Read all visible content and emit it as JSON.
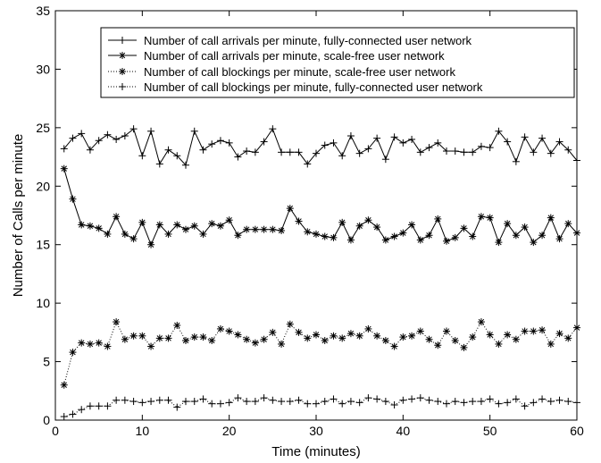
{
  "chart_data": {
    "type": "line",
    "title": "",
    "xlabel": "Time (minutes)",
    "ylabel": "Number of Calls per minute",
    "xlim": [
      0,
      60
    ],
    "ylim": [
      0,
      35
    ],
    "xticks": [
      0,
      10,
      20,
      30,
      40,
      50,
      60
    ],
    "yticks": [
      0,
      5,
      10,
      15,
      20,
      25,
      30,
      35
    ],
    "grid": false,
    "legend_position": "top-right",
    "x": [
      1,
      2,
      3,
      4,
      5,
      6,
      7,
      8,
      9,
      10,
      11,
      12,
      13,
      14,
      15,
      16,
      17,
      18,
      19,
      20,
      21,
      22,
      23,
      24,
      25,
      26,
      27,
      28,
      29,
      30,
      31,
      32,
      33,
      34,
      35,
      36,
      37,
      38,
      39,
      40,
      41,
      42,
      43,
      44,
      45,
      46,
      47,
      48,
      49,
      50,
      51,
      52,
      53,
      54,
      55,
      56,
      57,
      58,
      59,
      60
    ],
    "series": [
      {
        "name": "Number of call arrivals per minute, fully-connected user network",
        "line_style": "solid",
        "marker": "+",
        "values": [
          23.2,
          24.1,
          24.5,
          23.1,
          23.9,
          24.4,
          24.0,
          24.3,
          24.9,
          22.6,
          24.7,
          21.9,
          23.1,
          22.6,
          21.8,
          24.7,
          23.1,
          23.6,
          23.9,
          23.7,
          22.5,
          23.0,
          22.9,
          23.8,
          24.9,
          22.9,
          22.9,
          22.9,
          21.9,
          22.8,
          23.5,
          23.7,
          22.6,
          24.3,
          22.8,
          23.2,
          24.1,
          22.3,
          24.2,
          23.7,
          24.0,
          22.9,
          23.3,
          23.7,
          23.0,
          23.0,
          22.9,
          22.9,
          23.4,
          23.3,
          24.7,
          23.8,
          22.1,
          24.2,
          22.9,
          24.1,
          22.8,
          23.8,
          23.1,
          22.2
        ]
      },
      {
        "name": "Number of call arrivals per minute, scale-free user network",
        "line_style": "solid",
        "marker": "*",
        "values": [
          21.5,
          18.9,
          16.7,
          16.6,
          16.4,
          15.9,
          17.4,
          15.9,
          15.5,
          16.9,
          15.0,
          16.7,
          15.9,
          16.7,
          16.3,
          16.6,
          15.9,
          16.8,
          16.6,
          17.1,
          15.8,
          16.3,
          16.3,
          16.3,
          16.3,
          16.2,
          18.1,
          17.0,
          16.1,
          15.9,
          15.7,
          15.6,
          16.9,
          15.4,
          16.6,
          17.1,
          16.5,
          15.4,
          15.7,
          16.0,
          16.7,
          15.4,
          15.8,
          17.2,
          15.3,
          15.6,
          16.4,
          15.7,
          17.4,
          17.3,
          15.2,
          16.8,
          15.8,
          16.5,
          15.2,
          15.8,
          17.3,
          15.5,
          16.8,
          16.0
        ]
      },
      {
        "name": "Number of call blockings per minute, scale-free user network",
        "line_style": "dotted",
        "marker": "*",
        "values": [
          3.0,
          5.8,
          6.6,
          6.5,
          6.6,
          6.3,
          8.4,
          6.9,
          7.2,
          7.2,
          6.3,
          7.0,
          7.0,
          8.1,
          6.8,
          7.1,
          7.1,
          6.8,
          7.8,
          7.6,
          7.3,
          6.9,
          6.6,
          6.9,
          7.5,
          6.5,
          8.2,
          7.5,
          7.0,
          7.3,
          6.8,
          7.2,
          7.0,
          7.4,
          7.2,
          7.8,
          7.2,
          6.8,
          6.3,
          7.1,
          7.2,
          7.6,
          6.9,
          6.4,
          7.6,
          6.8,
          6.2,
          7.1,
          8.4,
          7.3,
          6.5,
          7.3,
          6.9,
          7.6,
          7.6,
          7.7,
          6.5,
          7.4,
          7.0,
          7.9
        ]
      },
      {
        "name": "Number of call blockings per minute, fully-connected user network",
        "line_style": "dotted",
        "marker": "+",
        "values": [
          0.3,
          0.5,
          0.9,
          1.2,
          1.2,
          1.2,
          1.7,
          1.7,
          1.6,
          1.5,
          1.6,
          1.7,
          1.7,
          1.1,
          1.6,
          1.6,
          1.8,
          1.4,
          1.4,
          1.5,
          1.9,
          1.6,
          1.6,
          1.9,
          1.7,
          1.6,
          1.6,
          1.7,
          1.4,
          1.4,
          1.6,
          1.8,
          1.4,
          1.6,
          1.5,
          1.9,
          1.8,
          1.6,
          1.3,
          1.7,
          1.8,
          1.9,
          1.7,
          1.6,
          1.4,
          1.6,
          1.5,
          1.6,
          1.6,
          1.8,
          1.4,
          1.5,
          1.8,
          1.2,
          1.5,
          1.8,
          1.6,
          1.7,
          1.6,
          1.5
        ]
      }
    ]
  }
}
